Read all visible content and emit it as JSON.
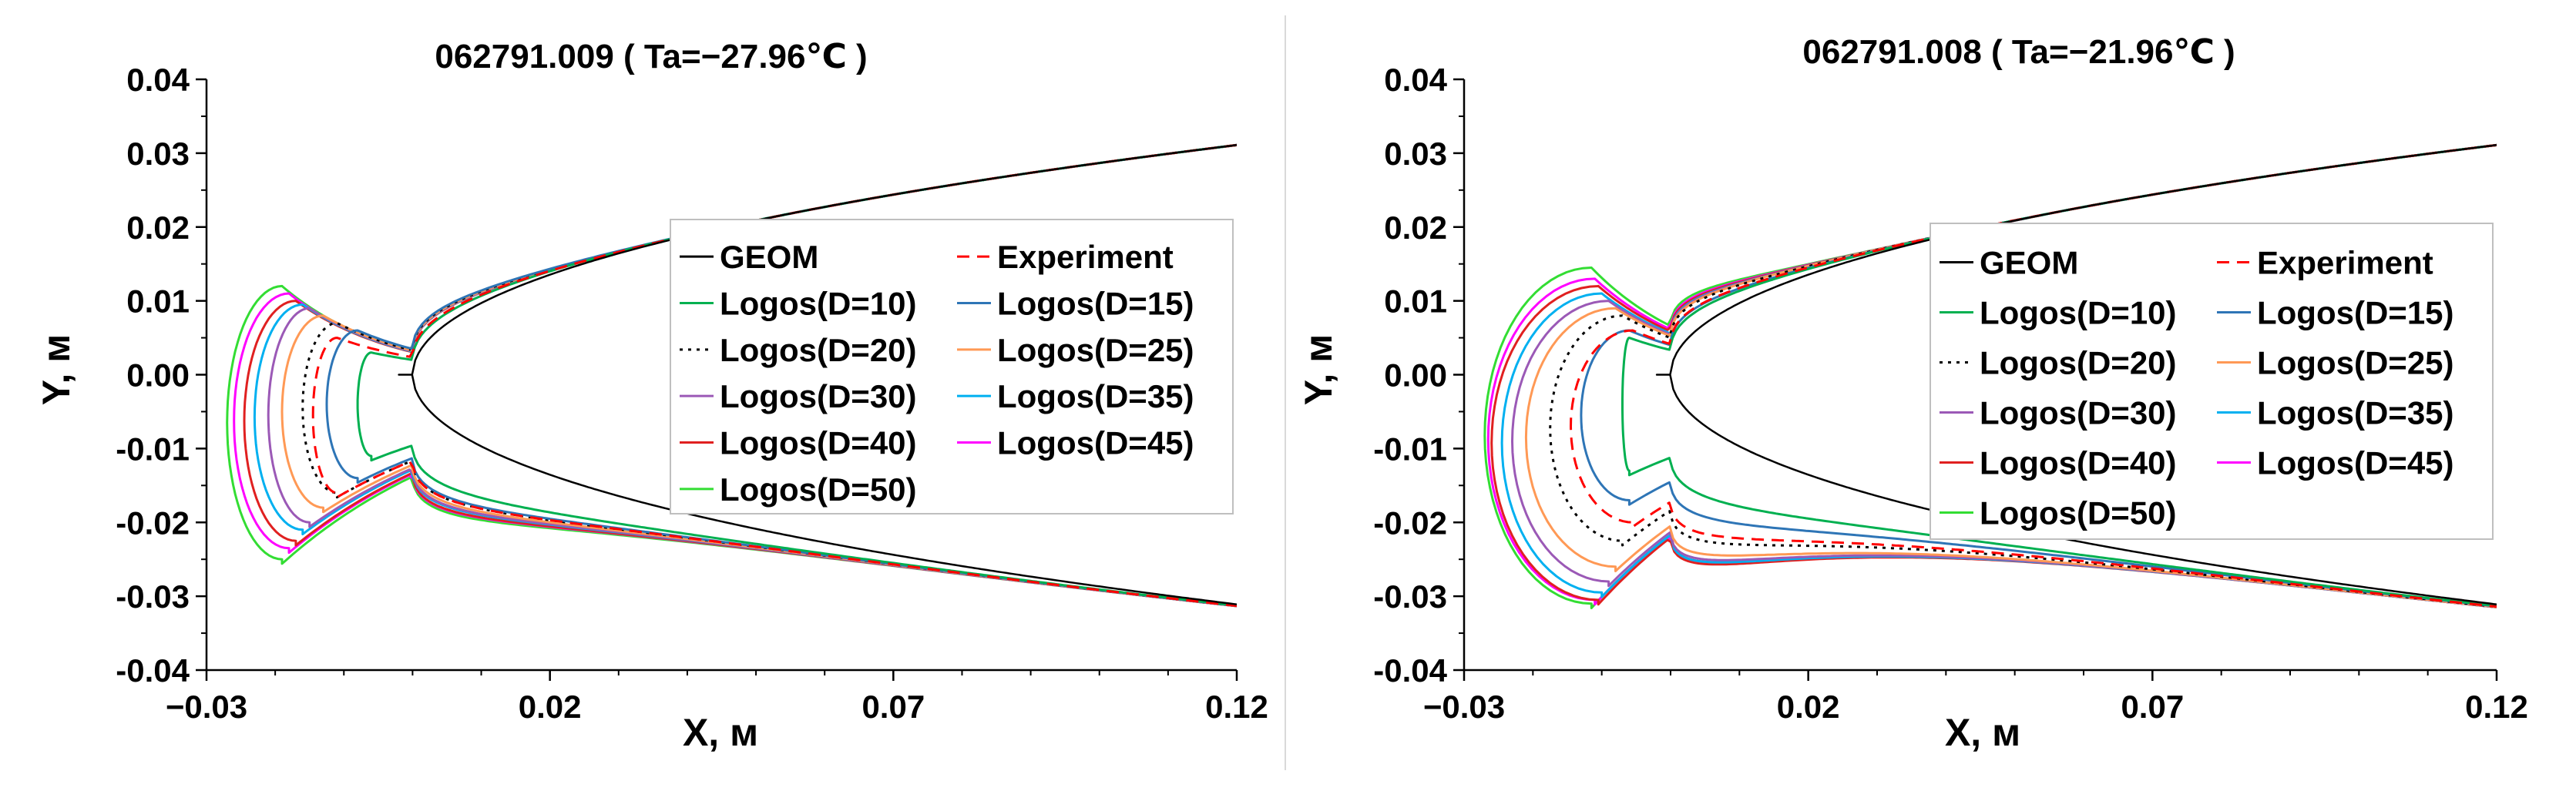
{
  "chart_data": [
    {
      "type": "line",
      "title": "062791.009 ( Ta=−27.96℃ )",
      "xlabel": "X, м",
      "ylabel": "Y, м",
      "xlim": [
        -0.03,
        0.12
      ],
      "ylim": [
        -0.04,
        0.04
      ],
      "x_ticks": [
        "−0.03",
        "0.02",
        "0.07",
        "0.12"
      ],
      "y_ticks": [
        "-0.04",
        "-0.03",
        "-0.02",
        "-0.01",
        "0.00",
        "0.01",
        "0.02",
        "0.03",
        "0.04"
      ],
      "grid": false,
      "legend_position": "right",
      "series": [
        {
          "name": "GEOM",
          "color": "#000000",
          "dash": "solid",
          "up_le": 0.0,
          "lo_le": 0.0,
          "horn_x": -0.001,
          "horn_u": 0.0,
          "horn_l": 0.0
        },
        {
          "name": "Experiment",
          "color": "#ff0000",
          "dash": "dashed",
          "up_le": -0.0145,
          "lo_le": -0.0145,
          "horn_x": -0.011,
          "horn_u": 0.005,
          "horn_l": -0.016
        },
        {
          "name": "Logos(D=10)",
          "color": "#00b050",
          "dash": "solid",
          "up_le": -0.008,
          "lo_le": -0.008,
          "horn_x": -0.006,
          "horn_u": 0.003,
          "horn_l": -0.011
        },
        {
          "name": "Logos(D=15)",
          "color": "#2e75b6",
          "dash": "solid",
          "up_le": -0.0125,
          "lo_le": -0.0125,
          "horn_x": -0.008,
          "horn_u": 0.006,
          "horn_l": -0.014
        },
        {
          "name": "Logos(D=20)",
          "color": "#000000",
          "dash": "dotted",
          "up_le": -0.016,
          "lo_le": -0.016,
          "horn_x": -0.011,
          "horn_u": 0.007,
          "horn_l": -0.016
        },
        {
          "name": "Logos(D=25)",
          "color": "#ff9955",
          "dash": "solid",
          "up_le": -0.019,
          "lo_le": -0.019,
          "horn_x": -0.013,
          "horn_u": 0.008,
          "horn_l": -0.018
        },
        {
          "name": "Logos(D=30)",
          "color": "#9b59b6",
          "dash": "solid",
          "up_le": -0.021,
          "lo_le": -0.021,
          "horn_x": -0.015,
          "horn_u": 0.009,
          "horn_l": -0.02
        },
        {
          "name": "Logos(D=35)",
          "color": "#00b0f0",
          "dash": "solid",
          "up_le": -0.023,
          "lo_le": -0.023,
          "horn_x": -0.016,
          "horn_u": 0.0095,
          "horn_l": -0.021
        },
        {
          "name": "Logos(D=40)",
          "color": "#e02020",
          "dash": "solid",
          "up_le": -0.0245,
          "lo_le": -0.0245,
          "horn_x": -0.017,
          "horn_u": 0.01,
          "horn_l": -0.0225
        },
        {
          "name": "Logos(D=45)",
          "color": "#ff00ff",
          "dash": "solid",
          "up_le": -0.026,
          "lo_le": -0.026,
          "horn_x": -0.018,
          "horn_u": 0.011,
          "horn_l": -0.0235
        },
        {
          "name": "Logos(D=50)",
          "color": "#33dd33",
          "dash": "solid",
          "up_le": -0.027,
          "lo_le": -0.027,
          "horn_x": -0.019,
          "horn_u": 0.012,
          "horn_l": -0.025
        }
      ]
    },
    {
      "type": "line",
      "title": "062791.008 ( Ta=−21.96℃ )",
      "xlabel": "X, м",
      "ylabel": "Y, м",
      "xlim": [
        -0.03,
        0.12
      ],
      "ylim": [
        -0.04,
        0.04
      ],
      "x_ticks": [
        "−0.03",
        "0.02",
        "0.07",
        "0.12"
      ],
      "y_ticks": [
        "-0.04",
        "-0.03",
        "-0.02",
        "-0.01",
        "0.00",
        "0.01",
        "0.02",
        "0.03",
        "0.04"
      ],
      "grid": false,
      "legend_position": "right",
      "series": [
        {
          "name": "GEOM",
          "color": "#000000",
          "dash": "solid",
          "up_le": 0.0,
          "lo_le": 0.0,
          "horn_x": -0.001,
          "horn_u": 0.0,
          "horn_l": 0.0
        },
        {
          "name": "Experiment",
          "color": "#ff0000",
          "dash": "dashed",
          "up_le": -0.0145,
          "lo_le": -0.0145,
          "horn_x": -0.0055,
          "horn_u": 0.006,
          "horn_l": -0.02
        },
        {
          "name": "Logos(D=10)",
          "color": "#00b050",
          "dash": "solid",
          "up_le": -0.006,
          "lo_le": -0.006,
          "horn_x": -0.006,
          "horn_u": 0.005,
          "horn_l": -0.013
        },
        {
          "name": "Logos(D=15)",
          "color": "#2e75b6",
          "dash": "solid",
          "up_le": -0.013,
          "lo_le": -0.013,
          "horn_x": -0.006,
          "horn_u": 0.006,
          "horn_l": -0.017
        },
        {
          "name": "Logos(D=20)",
          "color": "#000000",
          "dash": "dotted",
          "up_le": -0.0175,
          "lo_le": -0.0175,
          "horn_x": -0.007,
          "horn_u": 0.008,
          "horn_l": -0.0225
        },
        {
          "name": "Logos(D=25)",
          "color": "#ff9955",
          "dash": "solid",
          "up_le": -0.021,
          "lo_le": -0.021,
          "horn_x": -0.008,
          "horn_u": 0.009,
          "horn_l": -0.026
        },
        {
          "name": "Logos(D=30)",
          "color": "#9b59b6",
          "dash": "solid",
          "up_le": -0.023,
          "lo_le": -0.023,
          "horn_x": -0.009,
          "horn_u": 0.01,
          "horn_l": -0.028
        },
        {
          "name": "Logos(D=35)",
          "color": "#00b0f0",
          "dash": "solid",
          "up_le": -0.0245,
          "lo_le": -0.0245,
          "horn_x": -0.01,
          "horn_u": 0.011,
          "horn_l": -0.0295
        },
        {
          "name": "Logos(D=40)",
          "color": "#e02020",
          "dash": "solid",
          "up_le": -0.026,
          "lo_le": -0.026,
          "horn_x": -0.0105,
          "horn_u": 0.012,
          "horn_l": -0.0305
        },
        {
          "name": "Logos(D=45)",
          "color": "#ff00ff",
          "dash": "solid",
          "up_le": -0.0265,
          "lo_le": -0.0265,
          "horn_x": -0.011,
          "horn_u": 0.013,
          "horn_l": -0.0305
        },
        {
          "name": "Logos(D=50)",
          "color": "#33dd33",
          "dash": "solid",
          "up_le": -0.027,
          "lo_le": -0.027,
          "horn_x": -0.0115,
          "horn_u": 0.0145,
          "horn_l": -0.031
        }
      ]
    }
  ]
}
